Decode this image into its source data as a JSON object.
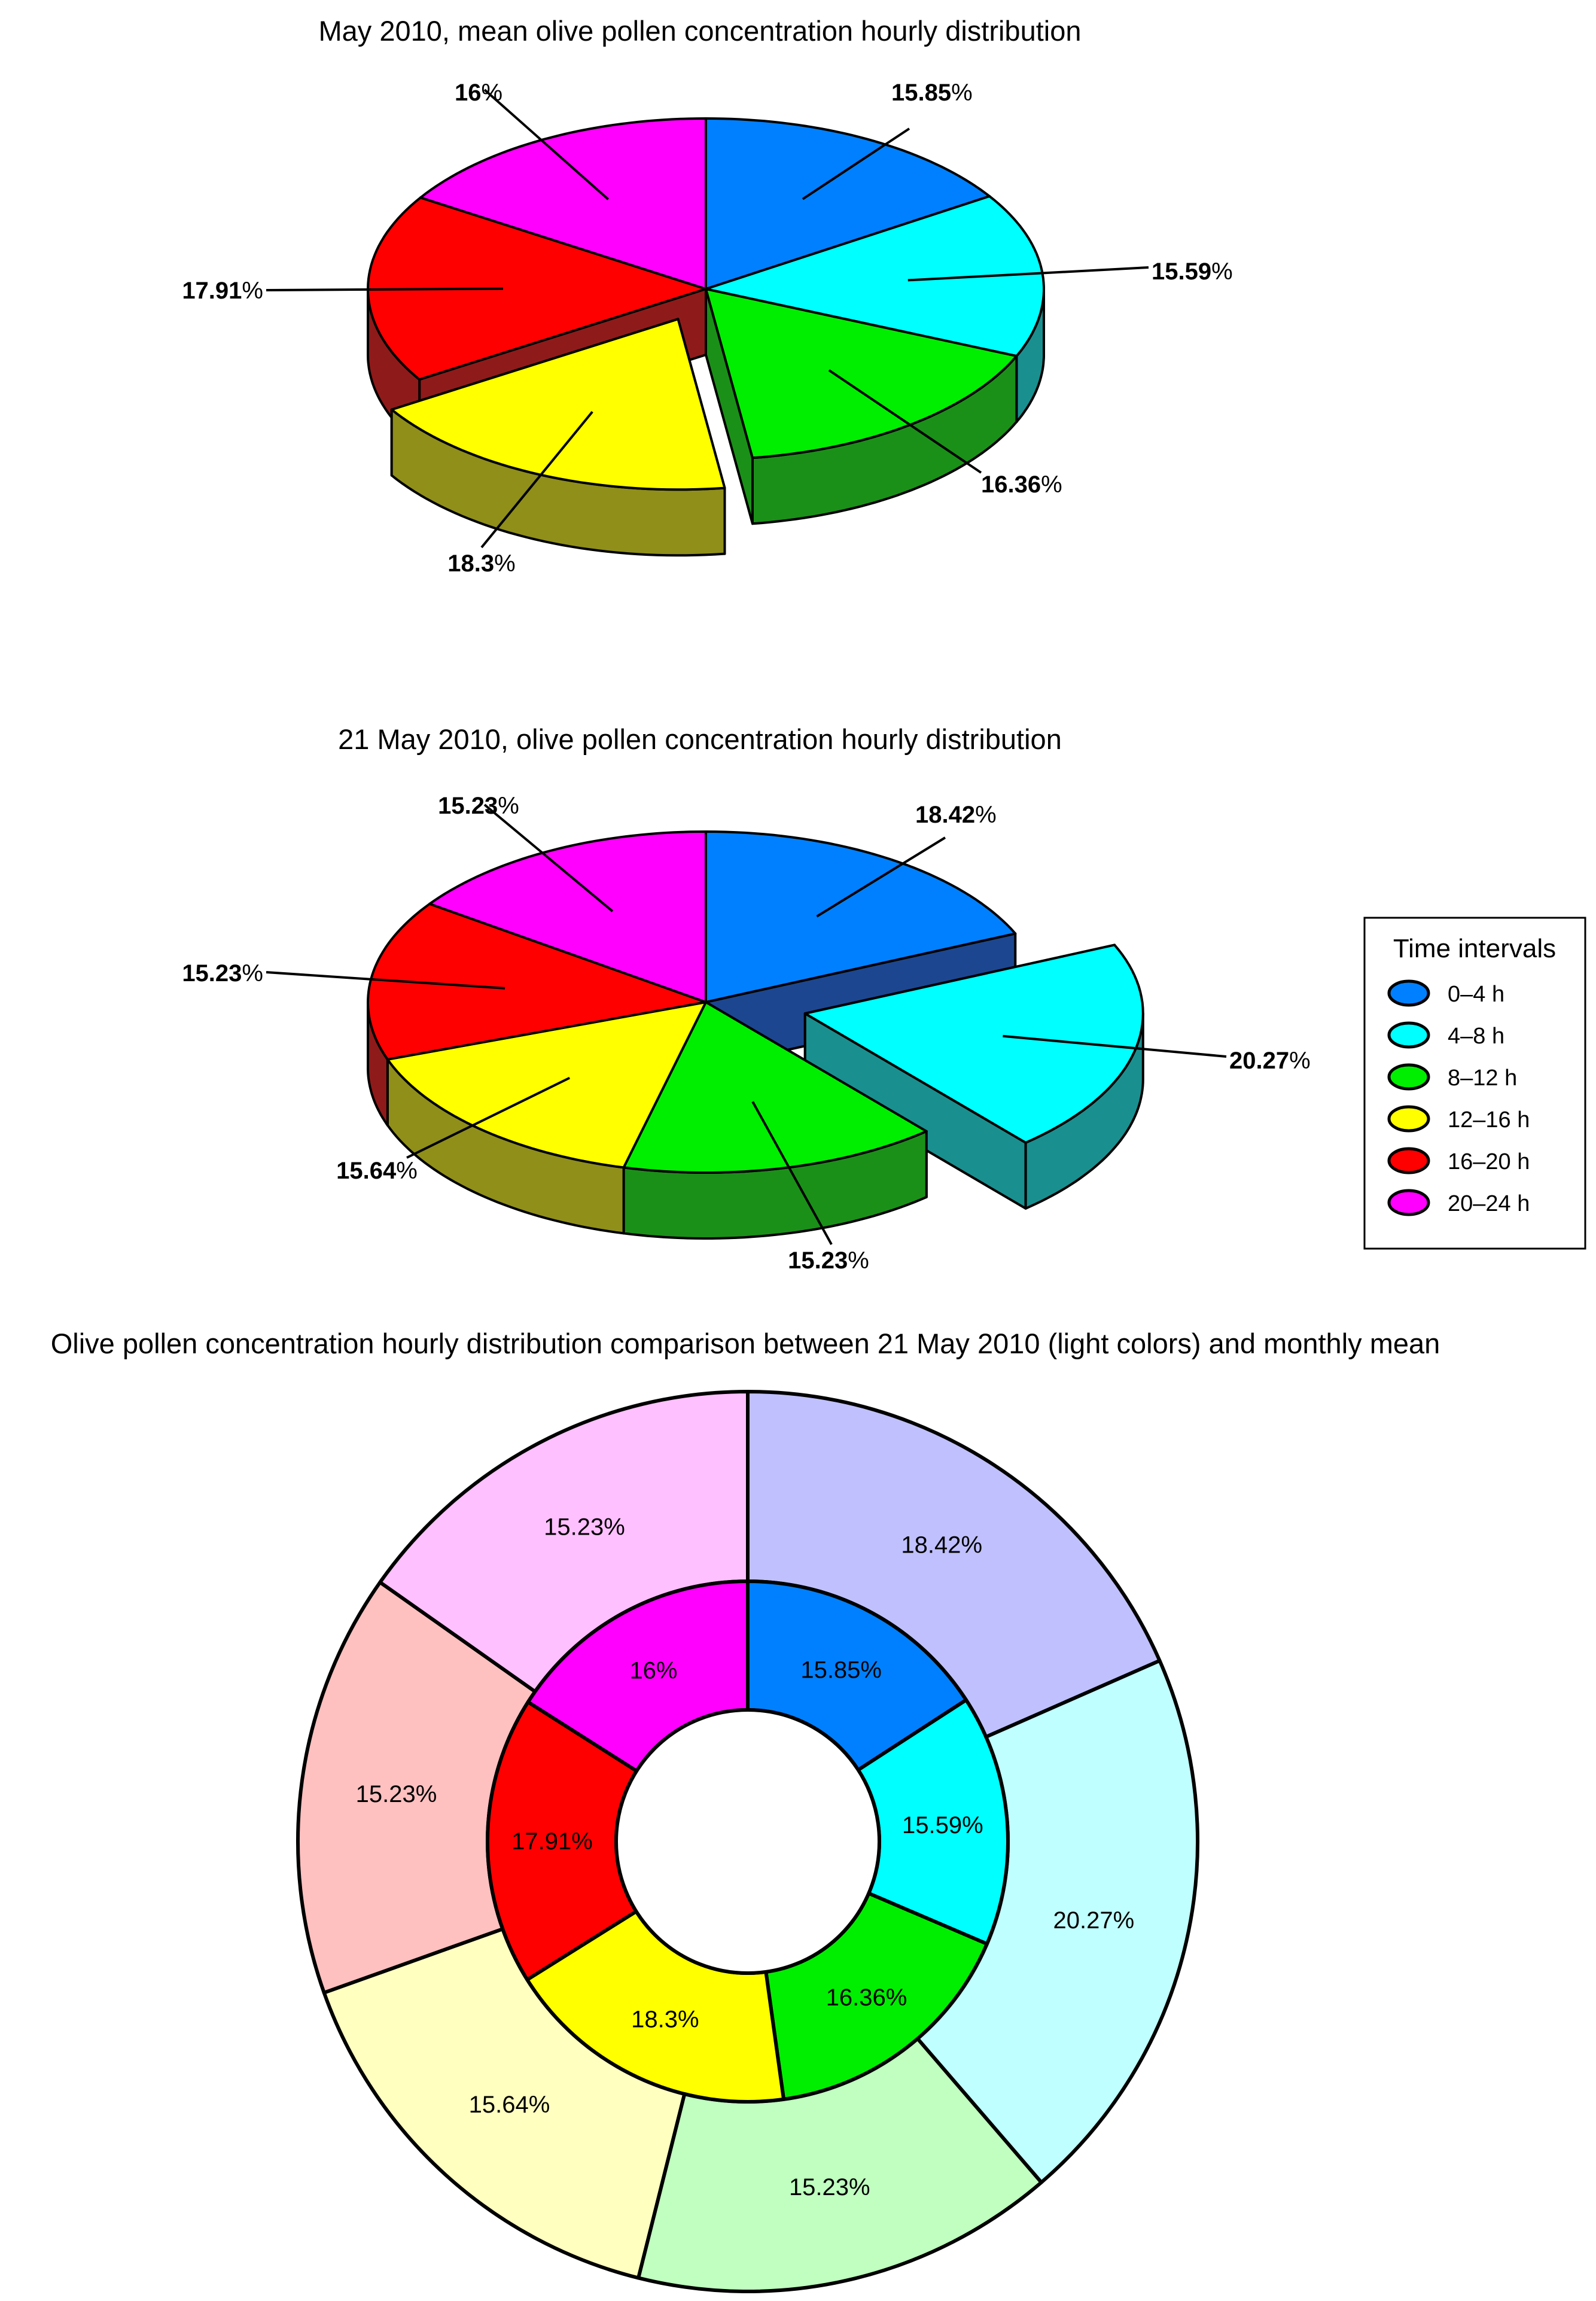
{
  "chart_data": [
    {
      "type": "pie",
      "style": "3d-exploded",
      "title": "May 2010, mean olive pollen concentration hourly distribution",
      "categories": [
        "0–4 h",
        "4–8 h",
        "8–12 h",
        "12–16 h",
        "16–20 h",
        "20–24 h"
      ],
      "values": [
        15.85,
        15.59,
        16.36,
        18.3,
        17.91,
        16
      ],
      "labels": [
        "15.85",
        "15.59",
        "16.36",
        "18.3",
        "17.91",
        "16"
      ],
      "exploded": [
        "12–16 h"
      ]
    },
    {
      "type": "pie",
      "style": "3d-exploded",
      "title": "21 May 2010, olive pollen concentration hourly distribution",
      "categories": [
        "0–4 h",
        "4–8 h",
        "8–12 h",
        "12–16 h",
        "16–20 h",
        "20–24 h"
      ],
      "values": [
        18.42,
        20.27,
        15.23,
        15.64,
        15.23,
        15.23
      ],
      "labels": [
        "18.42",
        "20.27",
        "15.23",
        "15.64",
        "15.23",
        "15.23"
      ],
      "exploded": [
        "4–8 h"
      ],
      "legend": {
        "title": "Time intervals",
        "placement": "right",
        "entries": [
          "0–4 h",
          "4–8 h",
          "8–12 h",
          "12–16 h",
          "16–20 h",
          "20–24 h"
        ]
      }
    },
    {
      "type": "pie",
      "style": "double-donut",
      "title": "Olive pollen concentration hourly distribution comparison between 21 May 2010 (light colors) and monthly mean",
      "categories": [
        "0–4 h",
        "4–8 h",
        "8–12 h",
        "12–16 h",
        "16–20 h",
        "20–24 h"
      ],
      "series": [
        {
          "ring": "inner",
          "values": [
            15.85,
            15.59,
            16.36,
            18.3,
            17.91,
            16
          ],
          "labels": [
            "15.85%",
            "15.59%",
            "16.36%",
            "18.3%",
            "17.91%",
            "16%"
          ]
        },
        {
          "ring": "outer",
          "values": [
            18.42,
            20.27,
            15.23,
            15.64,
            15.23,
            15.23
          ],
          "labels": [
            "18.42%",
            "20.27%",
            "15.23%",
            "15.64%",
            "15.23%",
            "15.23%"
          ]
        }
      ]
    }
  ],
  "colors": {
    "main": [
      "#0080ff",
      "#00ffff",
      "#00ee00",
      "#ffff00",
      "#ff0000",
      "#ff00ff"
    ],
    "side": [
      "#1c4690",
      "#1a8f8f",
      "#1a9018",
      "#8f8f1a",
      "#8f1a1a",
      "#8f1a8f"
    ],
    "light": [
      "#c0c0ff",
      "#c0ffff",
      "#c0ffc0",
      "#ffffc0",
      "#ffc0c0",
      "#ffc0ff"
    ]
  },
  "percent_sign": "%"
}
